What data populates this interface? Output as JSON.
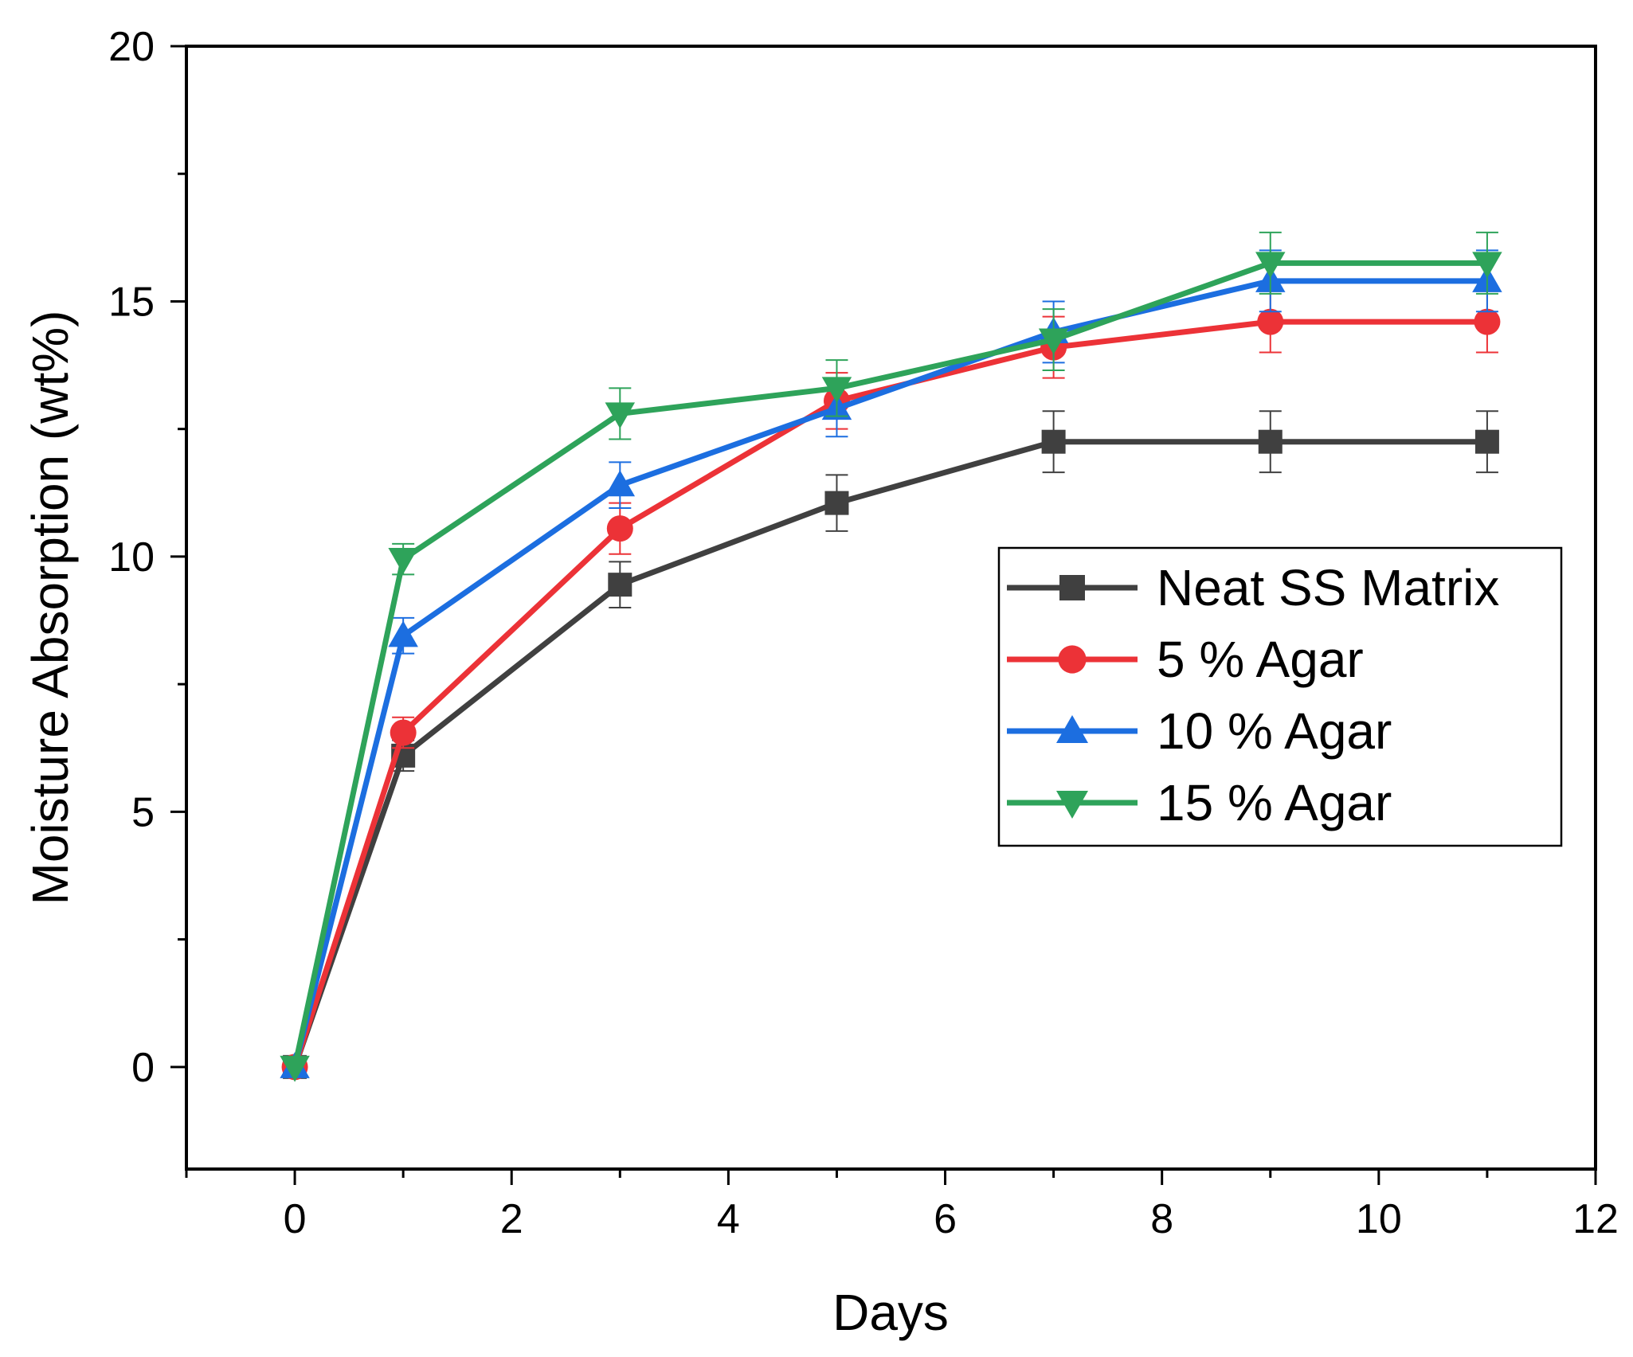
{
  "chart_data": {
    "type": "line",
    "title": "",
    "xlabel": "Days",
    "ylabel": "Moisture Absorption (wt%)",
    "xlim": [
      -1,
      12
    ],
    "ylim": [
      -2,
      20
    ],
    "x_ticks": [
      0,
      2,
      4,
      6,
      8,
      10,
      12
    ],
    "y_ticks": [
      0,
      5,
      10,
      15,
      20
    ],
    "grid": false,
    "legend_position": "center-right",
    "x": [
      0,
      1,
      3,
      5,
      7,
      9,
      11
    ],
    "series": [
      {
        "name": "Neat SS Matrix",
        "color": "#404040",
        "marker": "square",
        "values": [
          0,
          6.1,
          9.45,
          11.05,
          12.25,
          12.25,
          12.25
        ],
        "errors": [
          0,
          0.3,
          0.45,
          0.55,
          0.6,
          0.6,
          0.6
        ]
      },
      {
        "name": "5 % Agar",
        "color": "#ec3237",
        "marker": "circle",
        "values": [
          0,
          6.55,
          10.55,
          13.05,
          14.1,
          14.6,
          14.6
        ],
        "errors": [
          0,
          0.3,
          0.5,
          0.55,
          0.6,
          0.6,
          0.6
        ]
      },
      {
        "name": "10 % Agar",
        "color": "#1c6ee0",
        "marker": "triangle-up",
        "values": [
          0,
          8.45,
          11.4,
          12.9,
          14.4,
          15.4,
          15.4
        ],
        "errors": [
          0,
          0.35,
          0.45,
          0.55,
          0.6,
          0.6,
          0.6
        ]
      },
      {
        "name": "15 % Agar",
        "color": "#2ea35a",
        "marker": "triangle-down",
        "values": [
          0,
          9.95,
          12.8,
          13.3,
          14.25,
          15.75,
          15.75
        ],
        "errors": [
          0,
          0.3,
          0.5,
          0.55,
          0.6,
          0.6,
          0.6
        ]
      }
    ]
  }
}
